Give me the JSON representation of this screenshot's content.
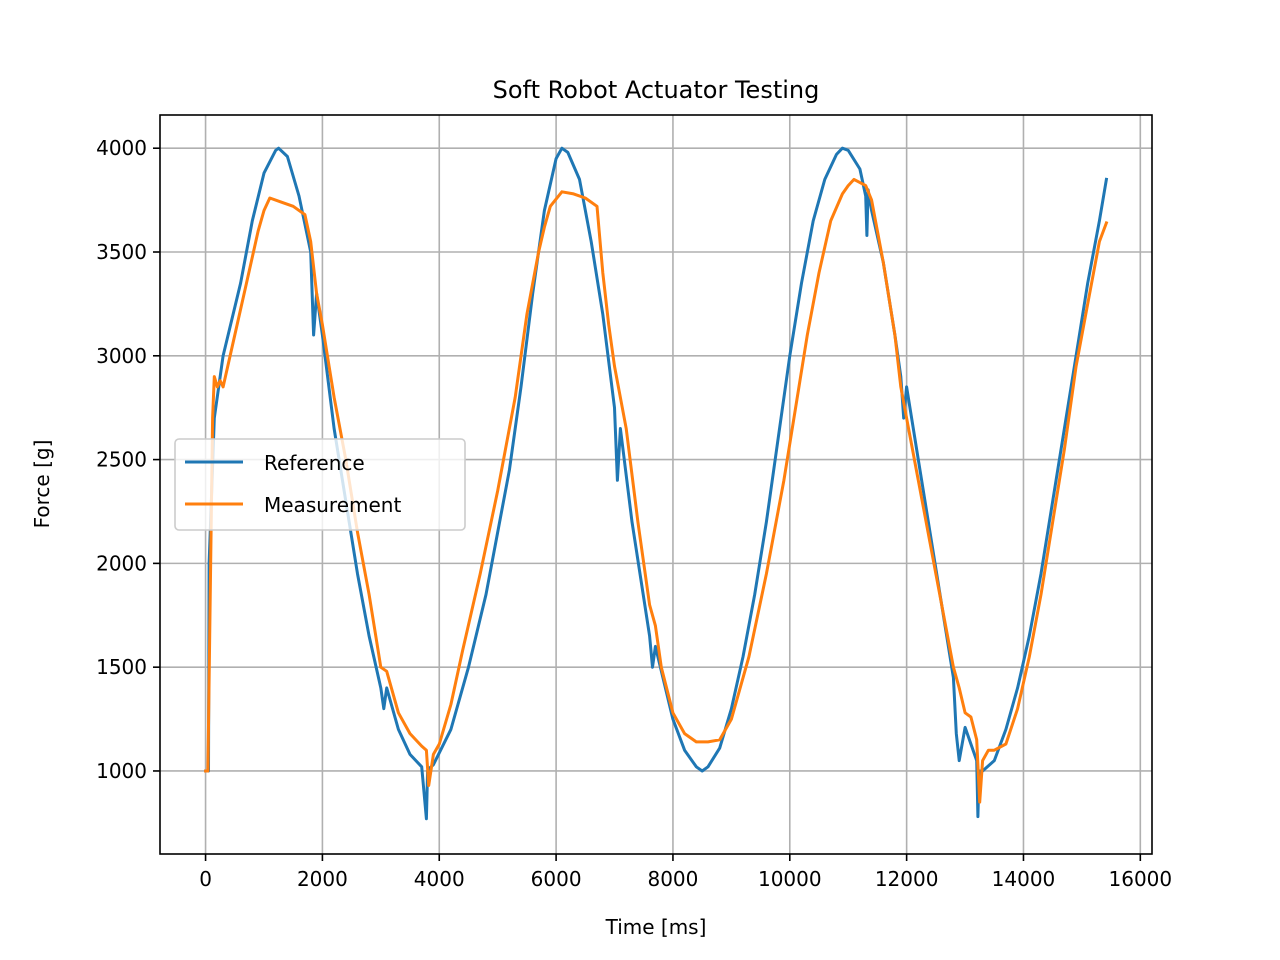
{
  "chart_data": {
    "type": "line",
    "title": "Soft Robot Actuator Testing",
    "xlabel": "Time [ms]",
    "ylabel": "Force [g]",
    "xlim": [
      -780,
      16200
    ],
    "ylim": [
      600,
      4160
    ],
    "xticks": [
      0,
      2000,
      4000,
      6000,
      8000,
      10000,
      12000,
      14000,
      16000
    ],
    "yticks": [
      1000,
      1500,
      2000,
      2500,
      3000,
      3500,
      4000
    ],
    "grid": true,
    "legend_position": "center-left",
    "series": [
      {
        "name": "Reference",
        "color": "#1f77b4",
        "x": [
          0,
          50,
          60,
          150,
          300,
          600,
          800,
          1000,
          1200,
          1250,
          1400,
          1600,
          1800,
          1850,
          1900,
          2000,
          2200,
          2400,
          2600,
          2800,
          3000,
          3050,
          3100,
          3300,
          3500,
          3700,
          3780,
          3800,
          3820,
          3900,
          4200,
          4500,
          4800,
          5000,
          5200,
          5400,
          5600,
          5800,
          6000,
          6100,
          6200,
          6400,
          6600,
          6800,
          7000,
          7050,
          7100,
          7300,
          7600,
          7650,
          7700,
          8000,
          8200,
          8400,
          8500,
          8600,
          8800,
          9000,
          9200,
          9400,
          9600,
          9800,
          10000,
          10200,
          10400,
          10600,
          10800,
          10900,
          11000,
          11200,
          11300,
          11320,
          11340,
          11400,
          11600,
          11800,
          11900,
          11950,
          12000,
          12200,
          12400,
          12600,
          12800,
          12850,
          12900,
          13000,
          13200,
          13220,
          13240,
          13300,
          13500,
          13700,
          13900,
          14100,
          14300,
          14500,
          14700,
          14900,
          15100,
          15300,
          15420
        ],
        "values": [
          1000,
          1000,
          2000,
          2700,
          3000,
          3350,
          3650,
          3880,
          3990,
          4000,
          3960,
          3770,
          3500,
          3100,
          3300,
          3100,
          2650,
          2300,
          1950,
          1650,
          1400,
          1300,
          1400,
          1200,
          1080,
          1020,
          770,
          1000,
          1010,
          1030,
          1200,
          1500,
          1850,
          2150,
          2450,
          2850,
          3300,
          3700,
          3950,
          4000,
          3980,
          3850,
          3550,
          3200,
          2750,
          2400,
          2650,
          2200,
          1650,
          1500,
          1600,
          1250,
          1100,
          1020,
          1000,
          1020,
          1110,
          1300,
          1550,
          1850,
          2200,
          2600,
          3000,
          3350,
          3650,
          3850,
          3970,
          4000,
          3990,
          3900,
          3770,
          3580,
          3800,
          3700,
          3450,
          3100,
          2900,
          2700,
          2850,
          2500,
          2150,
          1800,
          1450,
          1180,
          1050,
          1210,
          1050,
          780,
          1000,
          1000,
          1050,
          1200,
          1400,
          1650,
          1950,
          2300,
          2650,
          3000,
          3350,
          3650,
          3850
        ]
      },
      {
        "name": "Measurement",
        "color": "#ff7f0e",
        "x": [
          0,
          40,
          120,
          150,
          200,
          250,
          300,
          500,
          700,
          900,
          1000,
          1100,
          1300,
          1500,
          1700,
          1800,
          1900,
          2000,
          2200,
          2400,
          2600,
          2800,
          3000,
          3100,
          3300,
          3500,
          3700,
          3780,
          3820,
          3900,
          4000,
          4200,
          4400,
          4700,
          5000,
          5300,
          5500,
          5700,
          5800,
          5900,
          6100,
          6300,
          6500,
          6700,
          6800,
          6900,
          7000,
          7200,
          7400,
          7600,
          7700,
          7800,
          8000,
          8200,
          8400,
          8600,
          8800,
          9000,
          9300,
          9600,
          9900,
          10100,
          10300,
          10500,
          10700,
          10900,
          11000,
          11100,
          11300,
          11400,
          11600,
          11800,
          11900,
          12000,
          12200,
          12400,
          12600,
          12800,
          12900,
          13000,
          13100,
          13200,
          13250,
          13300,
          13400,
          13500,
          13700,
          13900,
          14100,
          14300,
          14500,
          14700,
          14900,
          15100,
          15300,
          15420
        ],
        "values": [
          1000,
          1000,
          2700,
          2900,
          2850,
          2880,
          2850,
          3100,
          3350,
          3600,
          3700,
          3760,
          3740,
          3720,
          3680,
          3550,
          3300,
          3150,
          2800,
          2500,
          2150,
          1850,
          1500,
          1480,
          1280,
          1180,
          1120,
          1100,
          930,
          1080,
          1130,
          1320,
          1580,
          1950,
          2350,
          2800,
          3200,
          3500,
          3620,
          3720,
          3790,
          3780,
          3760,
          3720,
          3400,
          3150,
          2950,
          2650,
          2200,
          1800,
          1700,
          1500,
          1280,
          1180,
          1140,
          1140,
          1150,
          1250,
          1550,
          1950,
          2400,
          2750,
          3100,
          3400,
          3650,
          3780,
          3820,
          3850,
          3820,
          3750,
          3450,
          3100,
          2850,
          2700,
          2400,
          2100,
          1800,
          1500,
          1400,
          1280,
          1260,
          1150,
          850,
          1050,
          1100,
          1100,
          1130,
          1300,
          1550,
          1850,
          2200,
          2550,
          2950,
          3250,
          3550,
          3640
        ]
      }
    ]
  }
}
